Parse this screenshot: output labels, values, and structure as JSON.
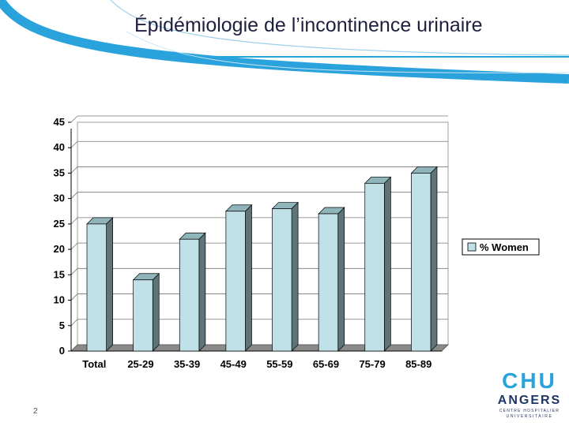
{
  "slide": {
    "title": "Épidémiologie de l’incontinence urinaire",
    "page_number": "2"
  },
  "logo": {
    "line1": "CHU",
    "line2": "ANGERS",
    "line3": "CENTRE HOSPITALIER",
    "line4": "UNIVERSITAIRE"
  },
  "colors": {
    "accent": "#2aa3dc",
    "bar_front": "#bfe0e6",
    "bar_side": "#5f7478",
    "title": "#1f1f3f",
    "logo_blue": "#2aa3dc",
    "logo_navy": "#1f3566"
  },
  "chart_data": {
    "type": "bar",
    "categories": [
      "Total",
      "25-29",
      "35-39",
      "45-49",
      "55-59",
      "65-69",
      "75-79",
      "85-89"
    ],
    "series": [
      {
        "name": "% Women",
        "values": [
          25,
          14,
          22,
          27.5,
          28,
          27,
          33,
          35
        ]
      }
    ],
    "ylim": [
      0,
      45
    ],
    "yticks": [
      0,
      5,
      10,
      15,
      20,
      25,
      30,
      35,
      40,
      45
    ],
    "grid": true,
    "legend": "right"
  }
}
